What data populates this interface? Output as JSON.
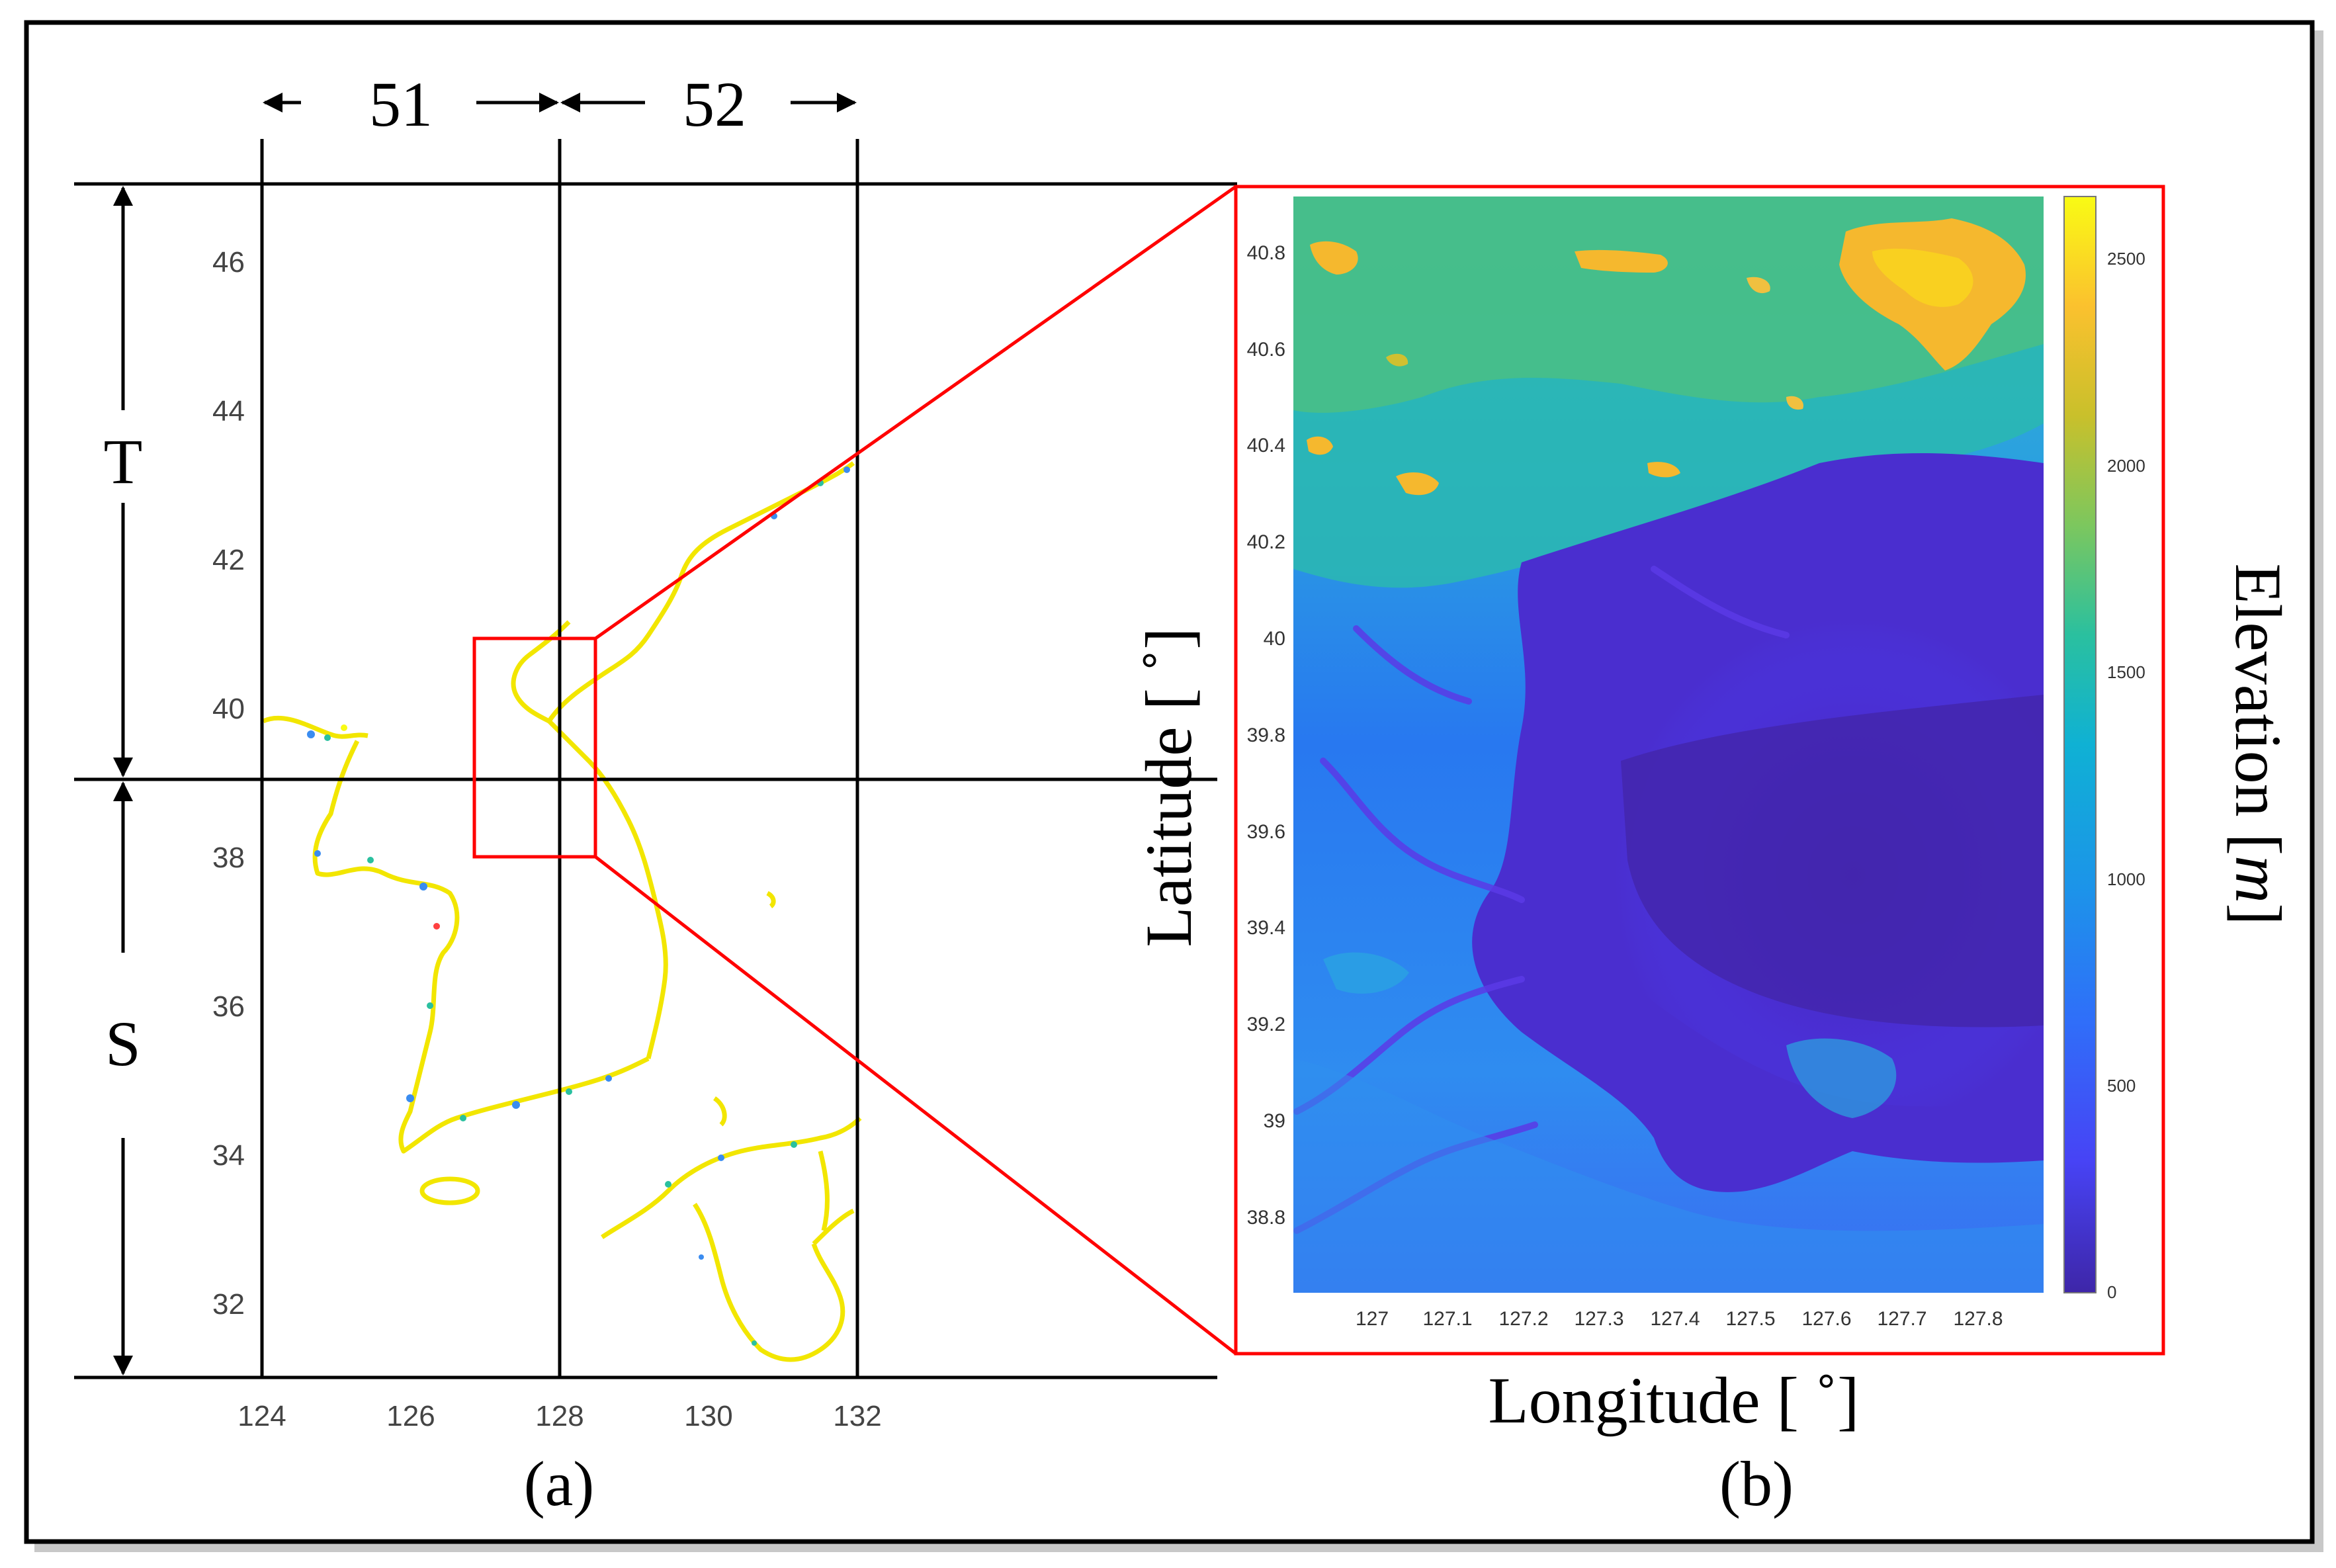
{
  "panel_a": {
    "caption": "(a)",
    "zone_labels": [
      "51",
      "52"
    ],
    "band_labels": [
      "T",
      "S"
    ],
    "x_ticks": [
      "124",
      "126",
      "128",
      "130",
      "132"
    ],
    "y_ticks": [
      "32",
      "34",
      "36",
      "38",
      "40",
      "42",
      "44",
      "46"
    ],
    "x_range": [
      122.5,
      135.4
    ],
    "y_range": [
      30.9,
      47.0
    ],
    "zone_meridians": [
      124,
      128,
      132
    ],
    "band_boundary_latitude": 39,
    "focus_box": {
      "lon": [
        126.9,
        128.5
      ],
      "lat": [
        38.0,
        40.9
      ]
    },
    "coastline_color": "#f2e600",
    "highlight_color": "#ff0000"
  },
  "panel_b": {
    "caption": "(b)",
    "xlabel": "Longitude [ ˚]",
    "ylabel": "Latitude [ ˚]",
    "colorbar_label_text": "Elevation [",
    "colorbar_label_unit": "m",
    "colorbar_label_close": "]",
    "x_ticks": [
      "127",
      "127.1",
      "127.2",
      "127.3",
      "127.4",
      "127.5",
      "127.6",
      "127.7",
      "127.8"
    ],
    "y_ticks": [
      "38.8",
      "39",
      "39.2",
      "39.4",
      "39.6",
      "39.8",
      "40",
      "40.2",
      "40.4",
      "40.6",
      "40.8"
    ],
    "colorbar_ticks": [
      "0",
      "500",
      "1000",
      "1500",
      "2000",
      "2500"
    ],
    "x_range": [
      126.89,
      127.88
    ],
    "y_range": [
      38.65,
      40.88
    ],
    "colorbar_range": [
      0,
      2650
    ],
    "colormap": [
      "#3e26a8",
      "#4743f5",
      "#2f6ff9",
      "#1c94e9",
      "#0fb1d4",
      "#2ac09f",
      "#7cc75e",
      "#c9c02b",
      "#fbc12e",
      "#f9fb14"
    ],
    "border_color": "#ff0000"
  }
}
